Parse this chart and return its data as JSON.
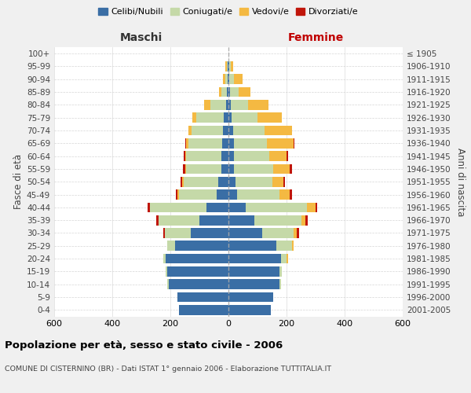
{
  "age_groups": [
    "0-4",
    "5-9",
    "10-14",
    "15-19",
    "20-24",
    "25-29",
    "30-34",
    "35-39",
    "40-44",
    "45-49",
    "50-54",
    "55-59",
    "60-64",
    "65-69",
    "70-74",
    "75-79",
    "80-84",
    "85-89",
    "90-94",
    "95-99",
    "100+"
  ],
  "birth_years": [
    "2001-2005",
    "1996-2000",
    "1991-1995",
    "1986-1990",
    "1981-1985",
    "1976-1980",
    "1971-1975",
    "1966-1970",
    "1961-1965",
    "1956-1960",
    "1951-1955",
    "1946-1950",
    "1941-1945",
    "1936-1940",
    "1931-1935",
    "1926-1930",
    "1921-1925",
    "1916-1920",
    "1911-1915",
    "1906-1910",
    "≤ 1905"
  ],
  "maschi": {
    "celibi": [
      170,
      175,
      205,
      210,
      215,
      185,
      130,
      100,
      75,
      40,
      35,
      25,
      25,
      22,
      18,
      15,
      8,
      5,
      2,
      2,
      1
    ],
    "coniugati": [
      0,
      0,
      5,
      5,
      10,
      25,
      90,
      140,
      195,
      130,
      120,
      120,
      120,
      115,
      110,
      95,
      55,
      20,
      8,
      4,
      0
    ],
    "vedovi": [
      0,
      0,
      0,
      0,
      0,
      0,
      0,
      0,
      0,
      5,
      5,
      5,
      5,
      8,
      10,
      15,
      22,
      8,
      8,
      4,
      0
    ],
    "divorziati": [
      0,
      0,
      0,
      0,
      0,
      0,
      5,
      8,
      8,
      5,
      5,
      8,
      5,
      5,
      0,
      0,
      0,
      0,
      0,
      0,
      0
    ]
  },
  "femmine": {
    "nubili": [
      145,
      155,
      175,
      175,
      180,
      165,
      115,
      90,
      60,
      30,
      25,
      20,
      20,
      18,
      15,
      10,
      8,
      5,
      3,
      2,
      0
    ],
    "coniugate": [
      0,
      0,
      5,
      10,
      20,
      55,
      110,
      160,
      210,
      145,
      125,
      135,
      120,
      115,
      110,
      90,
      60,
      30,
      15,
      5,
      0
    ],
    "vedove": [
      0,
      0,
      0,
      0,
      5,
      5,
      10,
      15,
      30,
      35,
      40,
      55,
      60,
      90,
      95,
      85,
      70,
      40,
      30,
      10,
      0
    ],
    "divorziate": [
      0,
      0,
      0,
      0,
      0,
      0,
      8,
      8,
      5,
      8,
      5,
      8,
      5,
      5,
      0,
      0,
      0,
      0,
      0,
      0,
      0
    ]
  },
  "colors": {
    "celibi": "#3A6EA5",
    "coniugati": "#C5D9A8",
    "vedovi": "#F4B942",
    "divorziati": "#C0150A"
  },
  "legend_labels": [
    "Celibi/Nubili",
    "Coniugati/e",
    "Vedovi/e",
    "Divorziati/e"
  ],
  "title": "Popolazione per età, sesso e stato civile - 2006",
  "subtitle": "COMUNE DI CISTERNINO (BR) - Dati ISTAT 1° gennaio 2006 - Elaborazione TUTTITALIA.IT",
  "xlabel_left": "Maschi",
  "xlabel_right": "Femmine",
  "ylabel_left": "Fasce di età",
  "ylabel_right": "Anni di nascita",
  "xlim": 600,
  "bg_color": "#f0f0f0",
  "plot_bg": "#ffffff",
  "grid_color": "#cccccc"
}
